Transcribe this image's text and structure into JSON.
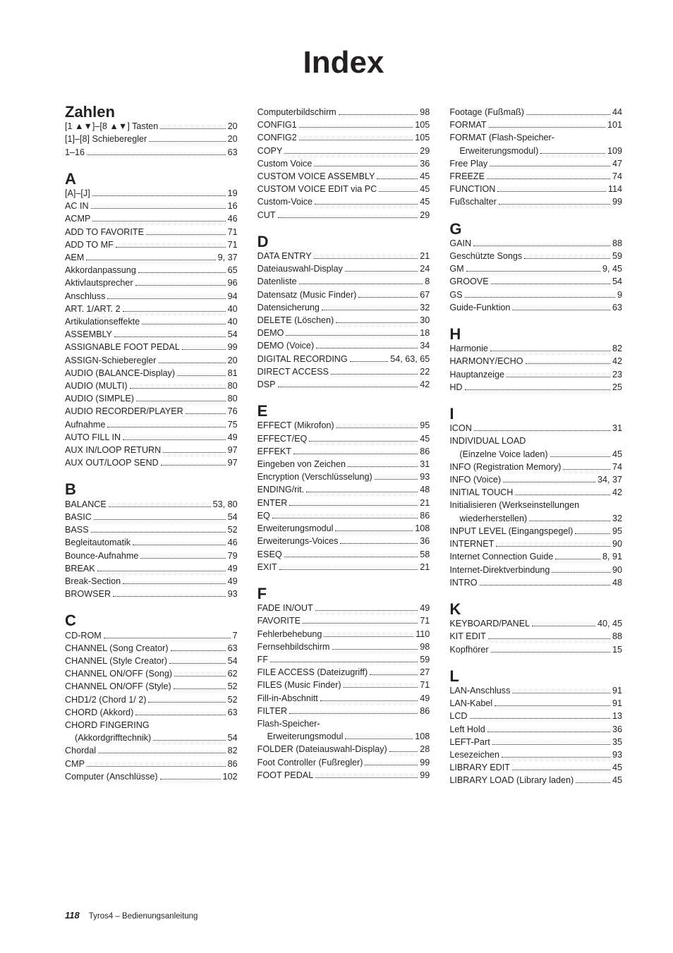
{
  "page": {
    "title": "Index",
    "footer_page": "118",
    "footer_text": "Tyros4 – Bedienungsanleitung"
  },
  "sections": [
    {
      "head": "Zahlen",
      "first": true,
      "entries": [
        {
          "label": "[1 ▲▼]–[8 ▲▼] Tasten",
          "page": "20"
        },
        {
          "label": "[1]–[8] Schieberegler",
          "page": "20"
        },
        {
          "label": "1–16",
          "page": "63"
        }
      ]
    },
    {
      "head": "A",
      "entries": [
        {
          "label": "[A]–[J]",
          "page": "19"
        },
        {
          "label": "AC IN",
          "page": "16"
        },
        {
          "label": "ACMP",
          "page": "46"
        },
        {
          "label": "ADD TO FAVORITE",
          "page": "71"
        },
        {
          "label": "ADD TO MF",
          "page": "71"
        },
        {
          "label": "AEM",
          "page": "9, 37"
        },
        {
          "label": "Akkordanpassung",
          "page": "65"
        },
        {
          "label": "Aktivlautsprecher",
          "page": "96"
        },
        {
          "label": "Anschluss",
          "page": "94"
        },
        {
          "label": "ART. 1/ART. 2",
          "page": "40"
        },
        {
          "label": "Artikulationseffekte",
          "page": "40"
        },
        {
          "label": "ASSEMBLY",
          "page": "54"
        },
        {
          "label": "ASSIGNABLE FOOT PEDAL",
          "page": "99"
        },
        {
          "label": "ASSIGN-Schieberegler",
          "page": "20"
        },
        {
          "label": "AUDIO (BALANCE-Display)",
          "page": "81"
        },
        {
          "label": "AUDIO (MULTI)",
          "page": "80"
        },
        {
          "label": "AUDIO (SIMPLE)",
          "page": "80"
        },
        {
          "label": "AUDIO RECORDER/PLAYER",
          "page": "76"
        },
        {
          "label": "Aufnahme",
          "page": "75"
        },
        {
          "label": "AUTO FILL IN",
          "page": "49"
        },
        {
          "label": "AUX IN/LOOP RETURN",
          "page": "97"
        },
        {
          "label": "AUX OUT/LOOP SEND",
          "page": "97"
        }
      ]
    },
    {
      "head": "B",
      "entries": [
        {
          "label": "BALANCE",
          "page": "53, 80"
        },
        {
          "label": "BASIC",
          "page": "54"
        },
        {
          "label": "BASS",
          "page": "52"
        },
        {
          "label": "Begleitautomatik",
          "page": "46"
        },
        {
          "label": "Bounce-Aufnahme",
          "page": "79"
        },
        {
          "label": "BREAK",
          "page": "49"
        },
        {
          "label": "Break-Section",
          "page": "49"
        },
        {
          "label": "BROWSER",
          "page": "93"
        }
      ]
    },
    {
      "head": "C",
      "entries": [
        {
          "label": "CD-ROM",
          "page": "7"
        },
        {
          "label": "CHANNEL (Song Creator)",
          "page": "63"
        },
        {
          "label": "CHANNEL (Style Creator)",
          "page": "54"
        },
        {
          "label": "CHANNEL ON/OFF (Song)",
          "page": "62"
        },
        {
          "label": "CHANNEL ON/OFF (Style)",
          "page": "52"
        },
        {
          "label": "CHD1/2 (Chord 1/ 2)",
          "page": "52"
        },
        {
          "label": "CHORD (Akkord)",
          "page": "63"
        },
        {
          "label": "CHORD FINGERING",
          "nopage": true
        },
        {
          "label": "(Akkordgrifftechnik)",
          "page": "54",
          "indent": true
        },
        {
          "label": "Chordal",
          "page": "82"
        },
        {
          "label": "CMP",
          "page": "86"
        },
        {
          "label": "Computer (Anschlüsse)",
          "page": "102"
        },
        {
          "label": "Computerbildschirm",
          "page": "98"
        },
        {
          "label": "CONFIG1",
          "page": "105"
        },
        {
          "label": "CONFIG2",
          "page": "105"
        },
        {
          "label": "COPY",
          "page": "29"
        },
        {
          "label": "Custom Voice",
          "page": "36"
        },
        {
          "label": "CUSTOM VOICE ASSEMBLY",
          "page": "45"
        },
        {
          "label": "CUSTOM VOICE EDIT via PC",
          "page": "45"
        },
        {
          "label": "Custom-Voice",
          "page": "45"
        },
        {
          "label": "CUT",
          "page": "29"
        }
      ]
    },
    {
      "head": "D",
      "entries": [
        {
          "label": "DATA ENTRY",
          "page": "21"
        },
        {
          "label": "Dateiauswahl-Display",
          "page": "24"
        },
        {
          "label": "Datenliste",
          "page": "8"
        },
        {
          "label": "Datensatz (Music Finder)",
          "page": "67"
        },
        {
          "label": "Datensicherung",
          "page": "32"
        },
        {
          "label": "DELETE (Löschen)",
          "page": "30"
        },
        {
          "label": "DEMO",
          "page": "18"
        },
        {
          "label": "DEMO (Voice)",
          "page": "34"
        },
        {
          "label": "DIGITAL RECORDING",
          "page": "54, 63, 65"
        },
        {
          "label": "DIRECT ACCESS",
          "page": "22"
        },
        {
          "label": "DSP",
          "page": "42"
        }
      ]
    },
    {
      "head": "E",
      "entries": [
        {
          "label": "EFFECT (Mikrofon)",
          "page": "95"
        },
        {
          "label": "EFFECT/EQ",
          "page": "45"
        },
        {
          "label": "EFFEKT",
          "page": "86"
        },
        {
          "label": "Eingeben von Zeichen",
          "page": "31"
        },
        {
          "label": "Encryption (Verschlüsselung)",
          "page": "93"
        },
        {
          "label": "ENDING/rit.",
          "page": "48"
        },
        {
          "label": "ENTER",
          "page": "21"
        },
        {
          "label": "EQ",
          "page": "86"
        },
        {
          "label": "Erweiterungsmodul",
          "page": "108"
        },
        {
          "label": "Erweiterungs-Voices",
          "page": "36"
        },
        {
          "label": "ESEQ",
          "page": "58"
        },
        {
          "label": "EXIT",
          "page": "21"
        }
      ]
    },
    {
      "head": "F",
      "entries": [
        {
          "label": "FADE IN/OUT",
          "page": "49"
        },
        {
          "label": "FAVORITE",
          "page": "71"
        },
        {
          "label": "Fehlerbehebung",
          "page": "110"
        },
        {
          "label": "Fernsehbildschirm",
          "page": "98"
        },
        {
          "label": "FF",
          "page": "59"
        },
        {
          "label": "FILE ACCESS (Dateizugriff)",
          "page": "27"
        },
        {
          "label": "FILES (Music Finder)",
          "page": "71"
        },
        {
          "label": "Fill-in-Abschnitt",
          "page": "49"
        },
        {
          "label": "FILTER",
          "page": "86"
        },
        {
          "label": "Flash-Speicher-",
          "nopage": true
        },
        {
          "label": "Erweiterungsmodul",
          "page": "108",
          "indent": true
        },
        {
          "label": "FOLDER (Dateiauswahl-Display)",
          "page": "28"
        },
        {
          "label": "Foot Controller (Fußregler)",
          "page": "99"
        },
        {
          "label": "FOOT PEDAL",
          "page": "99"
        },
        {
          "label": "Footage (Fußmaß)",
          "page": "44"
        },
        {
          "label": "FORMAT",
          "page": "101"
        },
        {
          "label": "FORMAT (Flash-Speicher-",
          "nopage": true
        },
        {
          "label": "Erweiterungsmodul)",
          "page": "109",
          "indent": true
        },
        {
          "label": "Free Play",
          "page": "47"
        },
        {
          "label": "FREEZE",
          "page": "74"
        },
        {
          "label": "FUNCTION",
          "page": "114"
        },
        {
          "label": "Fußschalter",
          "page": "99"
        }
      ]
    },
    {
      "head": "G",
      "entries": [
        {
          "label": "GAIN",
          "page": "88"
        },
        {
          "label": "Geschützte Songs",
          "page": "59"
        },
        {
          "label": "GM",
          "page": "9, 45"
        },
        {
          "label": "GROOVE",
          "page": "54"
        },
        {
          "label": "GS",
          "page": "9"
        },
        {
          "label": "Guide-Funktion",
          "page": "63"
        }
      ]
    },
    {
      "head": "H",
      "entries": [
        {
          "label": "Harmonie",
          "page": "82"
        },
        {
          "label": "HARMONY/ECHO",
          "page": "42"
        },
        {
          "label": "Hauptanzeige",
          "page": "23"
        },
        {
          "label": "HD",
          "page": "25"
        }
      ]
    },
    {
      "head": "I",
      "entries": [
        {
          "label": "ICON",
          "page": "31"
        },
        {
          "label": "INDIVIDUAL LOAD",
          "nopage": true
        },
        {
          "label": "(Einzelne Voice laden)",
          "page": "45",
          "indent": true
        },
        {
          "label": "INFO (Registration Memory)",
          "page": "74"
        },
        {
          "label": "INFO (Voice)",
          "page": "34, 37"
        },
        {
          "label": "INITIAL TOUCH",
          "page": "42"
        },
        {
          "label": "Initialisieren (Werkseinstellungen",
          "nopage": true
        },
        {
          "label": "wiederherstellen)",
          "page": "32",
          "indent": true
        },
        {
          "label": "INPUT LEVEL (Eingangspegel)",
          "page": "95"
        },
        {
          "label": "INTERNET",
          "page": "90"
        },
        {
          "label": "Internet Connection Guide",
          "page": "8, 91"
        },
        {
          "label": "Internet-Direktverbindung",
          "page": "90"
        },
        {
          "label": "INTRO",
          "page": "48"
        }
      ]
    },
    {
      "head": "K",
      "entries": [
        {
          "label": "KEYBOARD/PANEL",
          "page": "40, 45"
        },
        {
          "label": "KIT EDIT",
          "page": "88"
        },
        {
          "label": "Kopfhörer",
          "page": "15"
        }
      ]
    },
    {
      "head": "L",
      "entries": [
        {
          "label": "LAN-Anschluss",
          "page": "91"
        },
        {
          "label": "LAN-Kabel",
          "page": "91"
        },
        {
          "label": "LCD",
          "page": "13"
        },
        {
          "label": "Left Hold",
          "page": "36"
        },
        {
          "label": "LEFT-Part",
          "page": "35"
        },
        {
          "label": "Lesezeichen",
          "page": "93"
        },
        {
          "label": "LIBRARY EDIT",
          "page": "45"
        },
        {
          "label": "LIBRARY LOAD (Library laden)",
          "page": "45"
        }
      ]
    }
  ]
}
